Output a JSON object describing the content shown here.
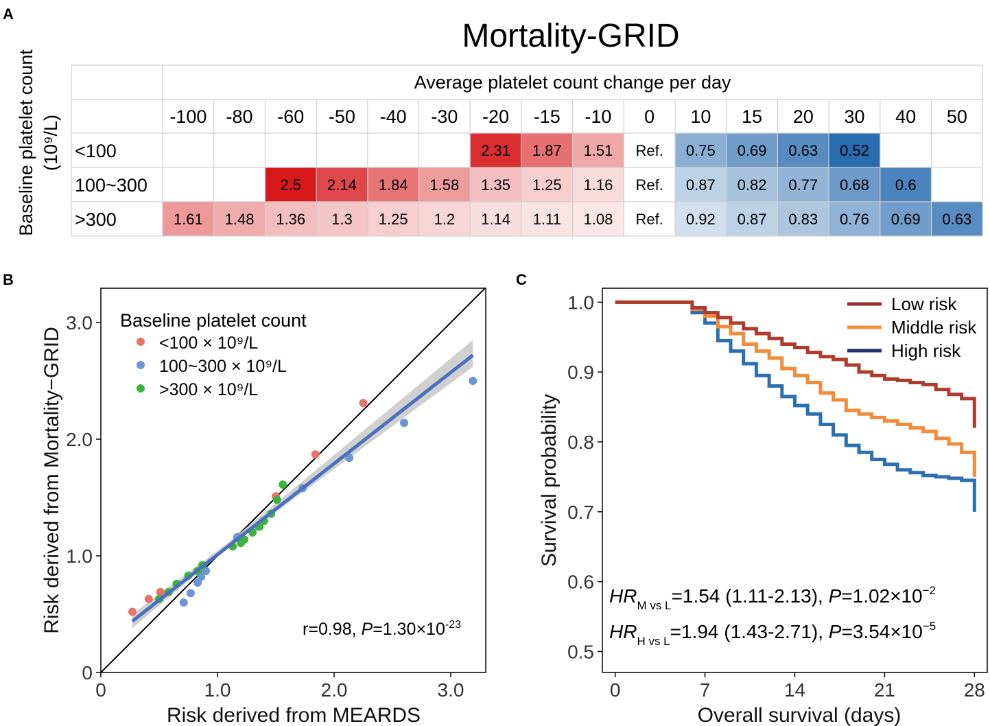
{
  "panels": {
    "a": "A",
    "b": "B",
    "c": "C"
  },
  "chart_data": [
    {
      "type": "heatmap",
      "title": "Mortality-GRID",
      "xlabel": "Average platelet count change per day",
      "ylabel": "Baseline platelet count",
      "ylabel_unit": "(10⁹/L)",
      "columns": [
        "-100",
        "-80",
        "-60",
        "-50",
        "-40",
        "-30",
        "-20",
        "-15",
        "-10",
        "0",
        "10",
        "15",
        "20",
        "30",
        "40",
        "50"
      ],
      "rows": [
        {
          "label": "<100",
          "values": [
            "",
            "",
            "",
            "",
            "",
            "",
            "2.31",
            "1.87",
            "1.51",
            "Ref.",
            "0.75",
            "0.69",
            "0.63",
            "0.52",
            "",
            ""
          ]
        },
        {
          "label": "100~300",
          "values": [
            "",
            "",
            "2.5",
            "2.14",
            "1.84",
            "1.58",
            "1.35",
            "1.25",
            "1.16",
            "Ref.",
            "0.87",
            "0.82",
            "0.77",
            "0.68",
            "0.6",
            ""
          ]
        },
        {
          "label": ">300",
          "values": [
            "1.61",
            "1.48",
            "1.36",
            "1.3",
            "1.25",
            "1.2",
            "1.14",
            "1.11",
            "1.08",
            "Ref.",
            "0.92",
            "0.87",
            "0.83",
            "0.76",
            "0.69",
            "0.63"
          ]
        }
      ],
      "colors": {
        "high": "#d7191c",
        "low": "#2166ac"
      }
    },
    {
      "type": "scatter",
      "xlabel": "Risk derived from MEARDS",
      "ylabel": "Risk derived from Mortality−GRID",
      "xlim": [
        0,
        3.3
      ],
      "ylim": [
        0,
        3.3
      ],
      "xticks": [
        "0",
        "1.0",
        "2.0",
        "3.0"
      ],
      "yticks": [
        "0",
        "1.0",
        "2.0",
        "3.0"
      ],
      "legend_title": "Baseline platelet count",
      "series": [
        {
          "name": "<100 × 10⁹/L",
          "color": "#e8736c",
          "points": [
            [
              0.27,
              0.52
            ],
            [
              0.41,
              0.63
            ],
            [
              0.51,
              0.69
            ],
            [
              1.5,
              1.51
            ],
            [
              1.84,
              1.87
            ],
            [
              2.25,
              2.31
            ]
          ]
        },
        {
          "name": "100~300 × 10⁹/L",
          "color": "#6a96d6",
          "points": [
            [
              0.71,
              0.6
            ],
            [
              0.77,
              0.68
            ],
            [
              0.83,
              0.77
            ],
            [
              0.86,
              0.82
            ],
            [
              0.9,
              0.87
            ],
            [
              1.17,
              1.16
            ],
            [
              1.35,
              1.25
            ],
            [
              1.73,
              1.58
            ],
            [
              2.13,
              1.84
            ],
            [
              2.6,
              2.14
            ],
            [
              3.19,
              2.5
            ]
          ]
        },
        {
          "name": ">300 × 10⁹/L",
          "color": "#3cb43c",
          "points": [
            [
              0.5,
              0.63
            ],
            [
              0.58,
              0.69
            ],
            [
              0.65,
              0.76
            ],
            [
              0.75,
              0.83
            ],
            [
              0.83,
              0.87
            ],
            [
              0.87,
              0.92
            ],
            [
              1.13,
              1.08
            ],
            [
              1.2,
              1.11
            ],
            [
              1.23,
              1.14
            ],
            [
              1.3,
              1.2
            ],
            [
              1.36,
              1.25
            ],
            [
              1.4,
              1.3
            ],
            [
              1.46,
              1.36
            ],
            [
              1.51,
              1.48
            ],
            [
              1.56,
              1.61
            ]
          ]
        }
      ],
      "fit": {
        "x": [
          0.27,
          3.19
        ],
        "y": [
          0.44,
          2.72
        ],
        "ci_low": [
          0.38,
          2.62
        ],
        "ci_high": [
          0.5,
          2.85
        ],
        "color": "#4a6fbe"
      },
      "annotation": {
        "prefix": "r=0.98, ",
        "p_label": "P",
        "value": "=1.30×10",
        "exponent": "-23"
      }
    },
    {
      "type": "line",
      "xlabel": "Overall survival (days)",
      "ylabel": "Survival probability",
      "xlim": [
        -1,
        29
      ],
      "ylim": [
        0.47,
        1.02
      ],
      "xticks": [
        "0",
        "7",
        "14",
        "21",
        "28"
      ],
      "yticks": [
        "0.5",
        "0.6",
        "0.7",
        "0.8",
        "0.9",
        "1.0"
      ],
      "series": [
        {
          "name": "Low risk",
          "color": "#b03a2e",
          "steps": [
            [
              0,
              1.0
            ],
            [
              5,
              1.0
            ],
            [
              6,
              0.992
            ],
            [
              7,
              0.985
            ],
            [
              8,
              0.978
            ],
            [
              9,
              0.97
            ],
            [
              10,
              0.962
            ],
            [
              11,
              0.955
            ],
            [
              12,
              0.948
            ],
            [
              13,
              0.94
            ],
            [
              14,
              0.935
            ],
            [
              15,
              0.928
            ],
            [
              16,
              0.922
            ],
            [
              17,
              0.918
            ],
            [
              18,
              0.91
            ],
            [
              19,
              0.9
            ],
            [
              20,
              0.895
            ],
            [
              21,
              0.89
            ],
            [
              22,
              0.888
            ],
            [
              23,
              0.885
            ],
            [
              24,
              0.882
            ],
            [
              25,
              0.875
            ],
            [
              26,
              0.868
            ],
            [
              27,
              0.862
            ],
            [
              28,
              0.862
            ],
            [
              28,
              0.82
            ]
          ]
        },
        {
          "name": "Middle risk",
          "color": "#f08c3a",
          "steps": [
            [
              0,
              1.0
            ],
            [
              5,
              1.0
            ],
            [
              6,
              0.99
            ],
            [
              7,
              0.98
            ],
            [
              8,
              0.965
            ],
            [
              9,
              0.955
            ],
            [
              10,
              0.94
            ],
            [
              11,
              0.93
            ],
            [
              12,
              0.92
            ],
            [
              13,
              0.905
            ],
            [
              14,
              0.895
            ],
            [
              15,
              0.885
            ],
            [
              16,
              0.87
            ],
            [
              17,
              0.86
            ],
            [
              18,
              0.845
            ],
            [
              19,
              0.84
            ],
            [
              20,
              0.835
            ],
            [
              21,
              0.83
            ],
            [
              22,
              0.825
            ],
            [
              23,
              0.82
            ],
            [
              24,
              0.815
            ],
            [
              25,
              0.805
            ],
            [
              26,
              0.797
            ],
            [
              27,
              0.785
            ],
            [
              28,
              0.785
            ],
            [
              28,
              0.75
            ]
          ]
        },
        {
          "name": "High risk",
          "color": "#2a6fb0",
          "steps": [
            [
              0,
              1.0
            ],
            [
              5,
              1.0
            ],
            [
              6,
              0.985
            ],
            [
              7,
              0.97
            ],
            [
              8,
              0.945
            ],
            [
              9,
              0.93
            ],
            [
              10,
              0.912
            ],
            [
              11,
              0.895
            ],
            [
              12,
              0.88
            ],
            [
              13,
              0.865
            ],
            [
              14,
              0.852
            ],
            [
              15,
              0.84
            ],
            [
              16,
              0.825
            ],
            [
              17,
              0.81
            ],
            [
              18,
              0.795
            ],
            [
              19,
              0.785
            ],
            [
              20,
              0.775
            ],
            [
              21,
              0.768
            ],
            [
              22,
              0.76
            ],
            [
              23,
              0.756
            ],
            [
              24,
              0.752
            ],
            [
              25,
              0.75
            ],
            [
              26,
              0.748
            ],
            [
              27,
              0.745
            ],
            [
              28,
              0.745
            ],
            [
              28,
              0.7
            ]
          ]
        }
      ],
      "legend_colors": [
        "#9b2f26",
        "#f0913e",
        "#22306b"
      ],
      "annotations": [
        {
          "hr": "HR",
          "sub": "M vs L",
          "value": "=1.54 (1.11-2.13), ",
          "p": "P",
          "pval": "=1.02×10",
          "exp": "−2"
        },
        {
          "hr": "HR",
          "sub": "H vs L",
          "value": "=1.94 (1.43-2.71), ",
          "p": "P",
          "pval": "=3.54×10",
          "exp": "−5"
        }
      ]
    }
  ]
}
